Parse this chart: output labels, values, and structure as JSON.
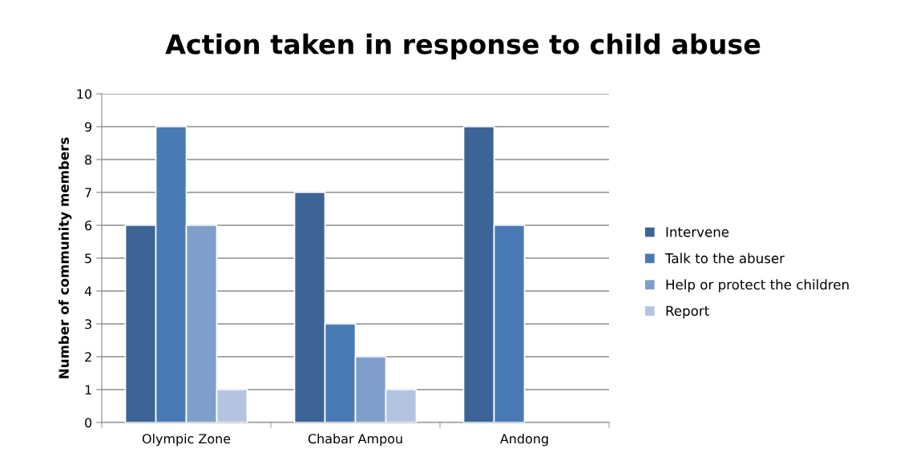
{
  "chart_data": {
    "type": "bar",
    "title": "Action taken in response to child abuse",
    "ylabel": "Number of community members",
    "categories": [
      "Olympic Zone",
      "Chabar Ampou",
      "Andong"
    ],
    "series": [
      {
        "name": "Intervene",
        "color": "#3c6496",
        "values": [
          6,
          7,
          9
        ]
      },
      {
        "name": "Talk to the abuser",
        "color": "#4a7ab5",
        "values": [
          9,
          3,
          6
        ]
      },
      {
        "name": "Help or protect the children",
        "color": "#7f9fcb",
        "values": [
          6,
          2,
          null
        ]
      },
      {
        "name": "Report",
        "color": "#b4c4e0",
        "values": [
          1,
          1,
          null
        ]
      }
    ],
    "ylim": [
      0,
      10
    ],
    "yticks": [
      0,
      1,
      2,
      3,
      4,
      5,
      6,
      7,
      8,
      9,
      10
    ],
    "grid": "y",
    "legend": "right"
  }
}
